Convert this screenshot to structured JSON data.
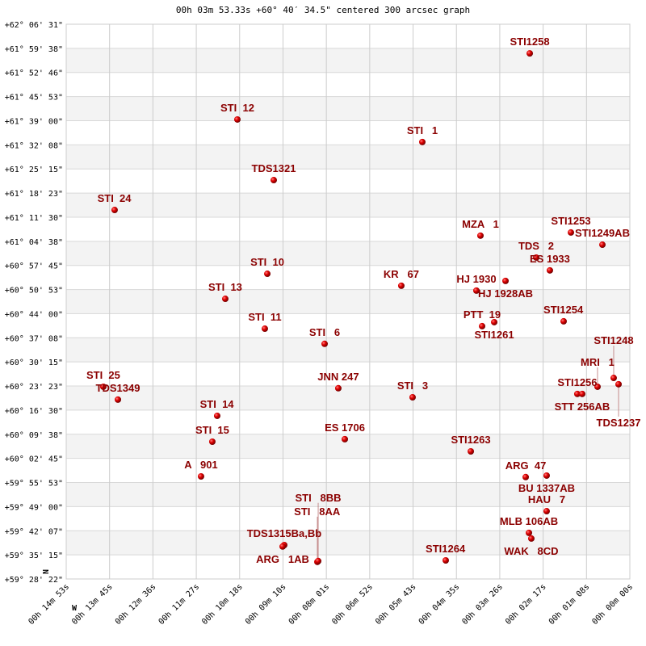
{
  "chart_data": {
    "type": "scatter",
    "title": "00h 03m 53.33s +60° 40′ 34.5\" centered 300 arcsec graph",
    "xlabel": "W",
    "ylabel": "N",
    "x_units": "RA seconds of time (decreasing to right)",
    "y_units": "Dec degrees",
    "xlim": [
      893,
      0
    ],
    "ylim": [
      59.4728,
      62.1086
    ],
    "grid": true,
    "x_ticks": [
      "00h 14m 53s",
      "00h 13m 45s",
      "00h 12m 36s",
      "00h 11m 27s",
      "00h 10m 18s",
      "00h 09m 10s",
      "00h 08m 01s",
      "00h 06m 52s",
      "00h 05m 43s",
      "00h 04m 35s",
      "00h 03m 26s",
      "00h 02m 17s",
      "00h 01m 08s",
      "00h 00m 00s"
    ],
    "y_ticks": [
      "+62° 06' 31\"",
      "+61° 59' 38\"",
      "+61° 52' 46\"",
      "+61° 45' 53\"",
      "+61° 39' 00\"",
      "+61° 32' 08\"",
      "+61° 25' 15\"",
      "+61° 18' 23\"",
      "+61° 11' 30\"",
      "+61° 04' 38\"",
      "+60° 57' 45\"",
      "+60° 50' 53\"",
      "+60° 44' 00\"",
      "+60° 37' 08\"",
      "+60° 30' 15\"",
      "+60° 23' 23\"",
      "+60° 16' 30\"",
      "+60° 09' 38\"",
      "+60° 02' 45\"",
      "+59° 55' 53\"",
      "+59° 49' 00\"",
      "+59° 42' 07\"",
      "+59° 35' 15\"",
      "+59° 28' 22\""
    ],
    "point_color": "#cc0000",
    "label_color": "#8b0000",
    "points": [
      {
        "name": "STI1258",
        "x": 158.6,
        "y": 61.97
      },
      {
        "name": "STI  12",
        "x": 621.8,
        "y": 61.656
      },
      {
        "name": "STI   1",
        "x": 328.8,
        "y": 61.549
      },
      {
        "name": "TDS1321",
        "x": 564.2,
        "y": 61.368
      },
      {
        "name": "STI  24",
        "x": 816.3,
        "y": 61.226
      },
      {
        "name": "MZA   1",
        "x": 236.7,
        "y": 61.104
      },
      {
        "name": "STI1253",
        "x": 93.4,
        "y": 61.119
      },
      {
        "name": "STI1249AB",
        "x": 43.5,
        "y": 61.061
      },
      {
        "name": "TDS   2",
        "x": 148.4,
        "y": 61.0
      },
      {
        "name": "ES 1933",
        "x": 126.7,
        "y": 60.939
      },
      {
        "name": "HJ 1928AB",
        "x": 197.0,
        "y": 60.889
      },
      {
        "name": "HJ 1930",
        "x": 243.1,
        "y": 60.843
      },
      {
        "name": "KR   67",
        "x": 362.1,
        "y": 60.866
      },
      {
        "name": "STI  10",
        "x": 574.4,
        "y": 60.923
      },
      {
        "name": "STI  13",
        "x": 641.0,
        "y": 60.804
      },
      {
        "name": "STI  11",
        "x": 578.3,
        "y": 60.662
      },
      {
        "name": "STI   6",
        "x": 483.6,
        "y": 60.59
      },
      {
        "name": "PTT  19",
        "x": 234.1,
        "y": 60.674
      },
      {
        "name": "STI1261",
        "x": 214.9,
        "y": 60.693
      },
      {
        "name": "STI1254",
        "x": 104.9,
        "y": 60.697
      },
      {
        "name": "JNN 247",
        "x": 461.9,
        "y": 60.379
      },
      {
        "name": "STI   3",
        "x": 344.2,
        "y": 60.336
      },
      {
        "name": "STI  25",
        "x": 834.2,
        "y": 60.386
      },
      {
        "name": "TDS1349",
        "x": 811.1,
        "y": 60.325
      },
      {
        "name": "STI  14",
        "x": 653.8,
        "y": 60.248
      },
      {
        "name": "STI  15",
        "x": 661.5,
        "y": 60.125
      },
      {
        "name": "ES 1706",
        "x": 451.6,
        "y": 60.137
      },
      {
        "name": "STI1263",
        "x": 252.0,
        "y": 60.079
      },
      {
        "name": "A   901",
        "x": 679.4,
        "y": 59.96
      },
      {
        "name": "ARG  47",
        "x": 165.0,
        "y": 59.957
      },
      {
        "name": "BU 1337AB",
        "x": 131.8,
        "y": 59.964
      },
      {
        "name": "HAU   7",
        "x": 131.8,
        "y": 59.795
      },
      {
        "name": "MLB 106AB",
        "x": 159.9,
        "y": 59.692
      },
      {
        "name": "WAK   8CD",
        "x": 156.1,
        "y": 59.665
      },
      {
        "name": "STI1264",
        "x": 291.7,
        "y": 59.561
      },
      {
        "name": "STI1256",
        "x": 83.2,
        "y": 60.352
      },
      {
        "name": "STT 256AB",
        "x": 75.5,
        "y": 60.352
      },
      {
        "name": "MRI   1",
        "x": 51.2,
        "y": 60.386
      },
      {
        "name": "STI1248",
        "x": 25.6,
        "y": 60.428
      },
      {
        "name": "TDS1237",
        "x": 17.9,
        "y": 60.398
      },
      {
        "name": "TDS1315Ba,Bb",
        "x": 547.6,
        "y": 59.634
      },
      {
        "name": "ARG   1AB",
        "x": 550.1,
        "y": 59.627
      },
      {
        "name": "STI   8AA",
        "x": 495.1,
        "y": 59.554
      },
      {
        "name": "STI   8BB",
        "x": 493.8,
        "y": 59.558
      }
    ]
  }
}
